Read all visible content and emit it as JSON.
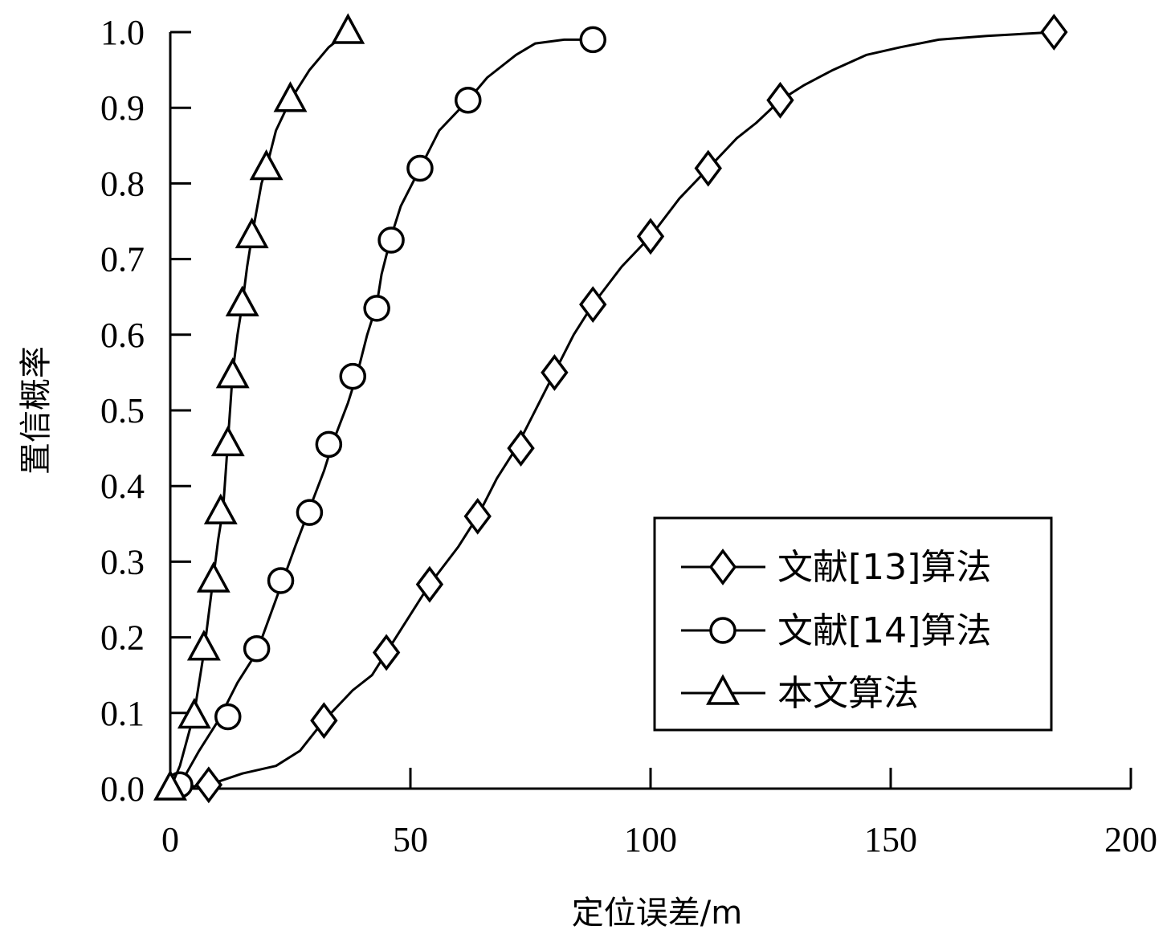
{
  "chart_data": {
    "type": "line",
    "xlabel": "定位误差/m",
    "ylabel": "置信概率",
    "xlim": [
      0,
      200
    ],
    "ylim": [
      0,
      1.0
    ],
    "x_ticks": [
      "0",
      "50",
      "100",
      "150",
      "200"
    ],
    "y_ticks": [
      "0.0",
      "0.1",
      "0.2",
      "0.3",
      "0.4",
      "0.5",
      "0.6",
      "0.7",
      "0.8",
      "0.9",
      "1.0"
    ],
    "grid": false,
    "legend_position": "bottom-right",
    "series": [
      {
        "name": "文献[13]算法",
        "marker": "diamond",
        "line": [
          [
            0,
            0
          ],
          [
            8,
            0.005
          ],
          [
            15,
            0.02
          ],
          [
            22,
            0.03
          ],
          [
            27,
            0.05
          ],
          [
            32,
            0.09
          ],
          [
            38,
            0.13
          ],
          [
            42,
            0.15
          ],
          [
            45,
            0.18
          ],
          [
            50,
            0.23
          ],
          [
            54,
            0.27
          ],
          [
            60,
            0.32
          ],
          [
            64,
            0.36
          ],
          [
            68,
            0.41
          ],
          [
            72,
            0.45
          ],
          [
            76,
            0.5
          ],
          [
            80,
            0.55
          ],
          [
            84,
            0.6
          ],
          [
            88,
            0.64
          ],
          [
            94,
            0.69
          ],
          [
            100,
            0.73
          ],
          [
            106,
            0.78
          ],
          [
            112,
            0.82
          ],
          [
            118,
            0.86
          ],
          [
            122,
            0.88
          ],
          [
            127,
            0.91
          ],
          [
            132,
            0.93
          ],
          [
            138,
            0.95
          ],
          [
            145,
            0.97
          ],
          [
            152,
            0.98
          ],
          [
            160,
            0.99
          ],
          [
            170,
            0.995
          ],
          [
            184,
            1.0
          ]
        ],
        "markers": [
          [
            8,
            0.005
          ],
          [
            32,
            0.09
          ],
          [
            45,
            0.18
          ],
          [
            54,
            0.27
          ],
          [
            64,
            0.36
          ],
          [
            73,
            0.45
          ],
          [
            80,
            0.55
          ],
          [
            88,
            0.64
          ],
          [
            100,
            0.73
          ],
          [
            112,
            0.82
          ],
          [
            127,
            0.91
          ],
          [
            184,
            1.0
          ]
        ]
      },
      {
        "name": "文献[14]算法",
        "marker": "circle",
        "line": [
          [
            0,
            0
          ],
          [
            2,
            0.005
          ],
          [
            6,
            0.05
          ],
          [
            10,
            0.09
          ],
          [
            14,
            0.14
          ],
          [
            18,
            0.18
          ],
          [
            22,
            0.25
          ],
          [
            26,
            0.32
          ],
          [
            29,
            0.37
          ],
          [
            32,
            0.42
          ],
          [
            34,
            0.46
          ],
          [
            37,
            0.51
          ],
          [
            39,
            0.55
          ],
          [
            41,
            0.6
          ],
          [
            43,
            0.64
          ],
          [
            44,
            0.68
          ],
          [
            46,
            0.73
          ],
          [
            48,
            0.77
          ],
          [
            52,
            0.82
          ],
          [
            56,
            0.87
          ],
          [
            62,
            0.91
          ],
          [
            66,
            0.94
          ],
          [
            72,
            0.97
          ],
          [
            76,
            0.985
          ],
          [
            82,
            0.99
          ],
          [
            88,
            0.99
          ]
        ],
        "markers": [
          [
            2,
            0.005
          ],
          [
            12,
            0.095
          ],
          [
            18,
            0.185
          ],
          [
            23,
            0.275
          ],
          [
            29,
            0.365
          ],
          [
            33,
            0.455
          ],
          [
            38,
            0.545
          ],
          [
            43,
            0.635
          ],
          [
            46,
            0.725
          ],
          [
            52,
            0.82
          ],
          [
            62,
            0.91
          ],
          [
            88,
            0.99
          ]
        ]
      },
      {
        "name": "本文算法",
        "marker": "triangle",
        "line": [
          [
            0,
            0
          ],
          [
            2,
            0.03
          ],
          [
            5,
            0.1
          ],
          [
            7,
            0.18
          ],
          [
            8,
            0.23
          ],
          [
            9,
            0.28
          ],
          [
            10,
            0.33
          ],
          [
            11,
            0.37
          ],
          [
            12,
            0.46
          ],
          [
            13,
            0.55
          ],
          [
            14,
            0.6
          ],
          [
            15,
            0.64
          ],
          [
            16,
            0.69
          ],
          [
            17,
            0.73
          ],
          [
            19,
            0.8
          ],
          [
            20,
            0.82
          ],
          [
            22,
            0.87
          ],
          [
            25,
            0.91
          ],
          [
            29,
            0.95
          ],
          [
            33,
            0.98
          ],
          [
            37,
            1.0
          ]
        ],
        "markers": [
          [
            0,
            0
          ],
          [
            5,
            0.095
          ],
          [
            7,
            0.185
          ],
          [
            9,
            0.275
          ],
          [
            10.5,
            0.365
          ],
          [
            12,
            0.455
          ],
          [
            13,
            0.545
          ],
          [
            15,
            0.64
          ],
          [
            17,
            0.73
          ],
          [
            20,
            0.82
          ],
          [
            25,
            0.91
          ],
          [
            37,
            1.0
          ]
        ]
      }
    ]
  }
}
